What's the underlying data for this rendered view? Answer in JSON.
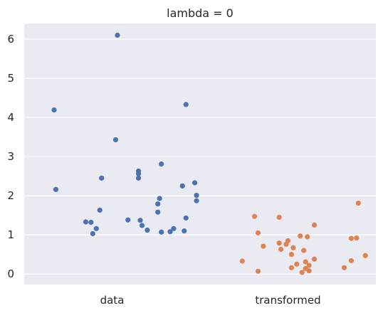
{
  "chart_data": {
    "type": "scatter",
    "title": "lambda = 0",
    "xlabel": "",
    "ylabel": "",
    "categories": [
      "data",
      "transformed"
    ],
    "ylim": [
      -0.27,
      6.4
    ],
    "yticks": [
      0,
      1,
      2,
      3,
      4,
      5,
      6
    ],
    "grid": true,
    "legend": "none",
    "colors": {
      "background": "#eaeaf2",
      "grid": "#ffffff",
      "data": "#4c72b0",
      "transformed": "#dd8452"
    },
    "series": [
      {
        "category": "data",
        "points": [
          {
            "x": 0.03,
            "y": 6.1
          },
          {
            "x": -0.33,
            "y": 4.19
          },
          {
            "x": 0.42,
            "y": 4.33
          },
          {
            "x": 0.02,
            "y": 3.43
          },
          {
            "x": 0.28,
            "y": 2.81
          },
          {
            "x": 0.15,
            "y": 2.63
          },
          {
            "x": 0.15,
            "y": 2.56
          },
          {
            "x": -0.06,
            "y": 2.45
          },
          {
            "x": 0.15,
            "y": 2.45
          },
          {
            "x": 0.47,
            "y": 2.33
          },
          {
            "x": 0.4,
            "y": 2.25
          },
          {
            "x": -0.32,
            "y": 2.16
          },
          {
            "x": 0.48,
            "y": 2.01
          },
          {
            "x": 0.27,
            "y": 1.93
          },
          {
            "x": 0.48,
            "y": 1.87
          },
          {
            "x": 0.26,
            "y": 1.79
          },
          {
            "x": -0.07,
            "y": 1.63
          },
          {
            "x": 0.26,
            "y": 1.58
          },
          {
            "x": 0.42,
            "y": 1.43
          },
          {
            "x": 0.09,
            "y": 1.38
          },
          {
            "x": 0.16,
            "y": 1.37
          },
          {
            "x": -0.15,
            "y": 1.33
          },
          {
            "x": -0.12,
            "y": 1.32
          },
          {
            "x": 0.17,
            "y": 1.24
          },
          {
            "x": 0.2,
            "y": 1.12
          },
          {
            "x": -0.09,
            "y": 1.16
          },
          {
            "x": 0.35,
            "y": 1.16
          },
          {
            "x": 0.41,
            "y": 1.1
          },
          {
            "x": 0.33,
            "y": 1.08
          },
          {
            "x": 0.28,
            "y": 1.07
          },
          {
            "x": -0.11,
            "y": 1.03
          }
        ]
      },
      {
        "category": "transformed",
        "points": [
          {
            "x": 1.4,
            "y": 1.81
          },
          {
            "x": 0.81,
            "y": 1.47
          },
          {
            "x": 0.95,
            "y": 1.45
          },
          {
            "x": 1.15,
            "y": 1.25
          },
          {
            "x": 0.83,
            "y": 1.05
          },
          {
            "x": 1.07,
            "y": 0.97
          },
          {
            "x": 1.11,
            "y": 0.95
          },
          {
            "x": 1.39,
            "y": 0.92
          },
          {
            "x": 1.36,
            "y": 0.91
          },
          {
            "x": 1.0,
            "y": 0.85
          },
          {
            "x": 0.95,
            "y": 0.79
          },
          {
            "x": 0.99,
            "y": 0.76
          },
          {
            "x": 0.86,
            "y": 0.71
          },
          {
            "x": 1.03,
            "y": 0.67
          },
          {
            "x": 0.96,
            "y": 0.63
          },
          {
            "x": 1.09,
            "y": 0.6
          },
          {
            "x": 1.02,
            "y": 0.5
          },
          {
            "x": 1.44,
            "y": 0.47
          },
          {
            "x": 1.15,
            "y": 0.38
          },
          {
            "x": 1.36,
            "y": 0.34
          },
          {
            "x": 0.74,
            "y": 0.33
          },
          {
            "x": 1.1,
            "y": 0.31
          },
          {
            "x": 1.05,
            "y": 0.25
          },
          {
            "x": 1.12,
            "y": 0.22
          },
          {
            "x": 1.02,
            "y": 0.16
          },
          {
            "x": 1.32,
            "y": 0.16
          },
          {
            "x": 1.1,
            "y": 0.14
          },
          {
            "x": 1.12,
            "y": 0.08
          },
          {
            "x": 0.83,
            "y": 0.07
          },
          {
            "x": 1.08,
            "y": 0.04
          }
        ]
      }
    ]
  }
}
